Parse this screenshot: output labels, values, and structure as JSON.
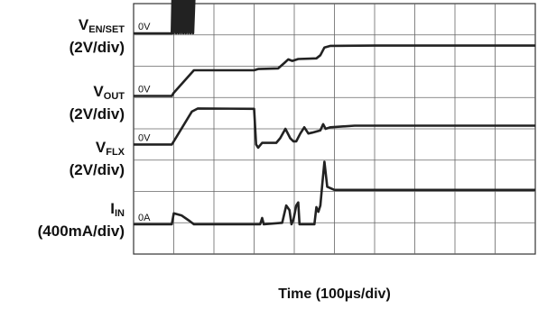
{
  "chart_data": {
    "type": "line",
    "x_axis": {
      "label": "Time (100µs/div)",
      "units_per_div": "100µs",
      "divisions": 10,
      "range_div": [
        0,
        10
      ]
    },
    "y_axis": {
      "divisions": 8,
      "range_div": [
        0,
        8
      ]
    },
    "grid": true,
    "traces": [
      {
        "name": "V_EN/SET",
        "name_main": "V",
        "name_sub": "EN/SET",
        "scale": "(2V/div)",
        "zero_label": "0V",
        "zero_div": 7.05,
        "color": "#222222",
        "points": [
          [
            0,
            0
          ],
          [
            0.95,
            0
          ],
          [
            0.97,
            1.3
          ],
          [
            1.0,
            0
          ],
          [
            1.03,
            1.3
          ],
          [
            1.06,
            0
          ],
          [
            1.09,
            1.3
          ],
          [
            1.12,
            0
          ],
          [
            1.15,
            1.3
          ],
          [
            1.18,
            0
          ],
          [
            1.21,
            1.3
          ],
          [
            1.24,
            0
          ],
          [
            1.27,
            1.3
          ],
          [
            1.3,
            0
          ],
          [
            1.33,
            1.3
          ],
          [
            1.36,
            0
          ],
          [
            1.39,
            1.3
          ],
          [
            1.42,
            0
          ],
          [
            1.45,
            1.3
          ],
          [
            1.48,
            0
          ],
          [
            1.52,
            1.3
          ],
          [
            10,
            1.3
          ]
        ]
      },
      {
        "name": "V_OUT",
        "name_main": "V",
        "name_sub": "OUT",
        "scale": "(2V/div)",
        "zero_label": "0V",
        "zero_div": 5.05,
        "color": "#222222",
        "points": [
          [
            0,
            0
          ],
          [
            0.95,
            0
          ],
          [
            1.0,
            0.1
          ],
          [
            1.5,
            0.82
          ],
          [
            2.0,
            0.82
          ],
          [
            3.0,
            0.82
          ],
          [
            3.1,
            0.86
          ],
          [
            3.6,
            0.88
          ],
          [
            3.75,
            1.05
          ],
          [
            3.85,
            1.17
          ],
          [
            3.95,
            1.12
          ],
          [
            4.1,
            1.18
          ],
          [
            4.55,
            1.2
          ],
          [
            4.65,
            1.3
          ],
          [
            4.75,
            1.55
          ],
          [
            4.9,
            1.6
          ],
          [
            6.0,
            1.61
          ],
          [
            10,
            1.61
          ]
        ]
      },
      {
        "name": "V_FLX",
        "name_main": "V",
        "name_sub": "FLX",
        "scale": "(2V/div)",
        "zero_label": "0V",
        "zero_div": 3.5,
        "color": "#222222",
        "points": [
          [
            0,
            0
          ],
          [
            0.95,
            0
          ],
          [
            1.0,
            0.1
          ],
          [
            1.45,
            1.05
          ],
          [
            1.6,
            1.15
          ],
          [
            3.0,
            1.14
          ],
          [
            3.05,
            0
          ],
          [
            3.1,
            -0.1
          ],
          [
            3.2,
            0.05
          ],
          [
            3.55,
            0.05
          ],
          [
            3.65,
            0.2
          ],
          [
            3.78,
            0.5
          ],
          [
            3.9,
            0.2
          ],
          [
            3.98,
            0.1
          ],
          [
            4.05,
            0.1
          ],
          [
            4.15,
            0.35
          ],
          [
            4.25,
            0.55
          ],
          [
            4.35,
            0.35
          ],
          [
            4.45,
            0.38
          ],
          [
            4.65,
            0.45
          ],
          [
            4.72,
            0.65
          ],
          [
            4.78,
            0.5
          ],
          [
            4.9,
            0.55
          ],
          [
            5.5,
            0.6
          ],
          [
            10,
            0.6
          ]
        ]
      },
      {
        "name": "I_IN",
        "name_main": "I",
        "name_sub": "IN",
        "scale": "(400mA/div)",
        "zero_label": "0A",
        "zero_div": 0.95,
        "color": "#222222",
        "points": [
          [
            0,
            0
          ],
          [
            0.95,
            0
          ],
          [
            1.0,
            0.35
          ],
          [
            1.2,
            0.28
          ],
          [
            1.4,
            0.1
          ],
          [
            1.5,
            0.0
          ],
          [
            3.15,
            0
          ],
          [
            3.2,
            0.2
          ],
          [
            3.24,
            0
          ],
          [
            3.7,
            0.05
          ],
          [
            3.8,
            0.6
          ],
          [
            3.88,
            0.45
          ],
          [
            3.93,
            0
          ],
          [
            3.98,
            0.15
          ],
          [
            4.05,
            0.6
          ],
          [
            4.1,
            0.7
          ],
          [
            4.13,
            0
          ],
          [
            4.5,
            0
          ],
          [
            4.55,
            0.55
          ],
          [
            4.6,
            0.4
          ],
          [
            4.65,
            0.6
          ],
          [
            4.7,
            1.3
          ],
          [
            4.75,
            2.0
          ],
          [
            4.82,
            1.2
          ],
          [
            5.0,
            1.1
          ],
          [
            10,
            1.1
          ]
        ]
      }
    ]
  }
}
